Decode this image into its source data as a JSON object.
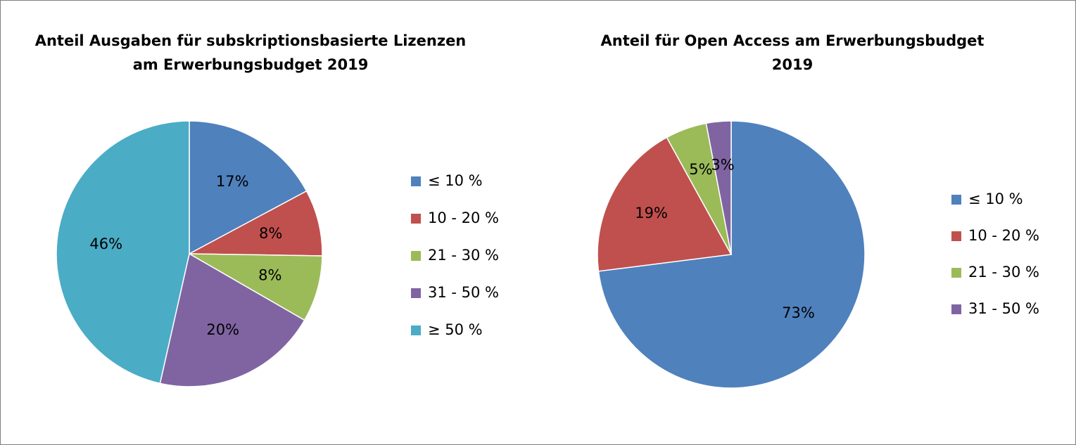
{
  "chart_data": [
    {
      "type": "pie",
      "title_lines": [
        "Anteil Ausgaben für subskriptionsbasierte Lizenzen",
        "am Erwerbungsbudget 2019"
      ],
      "categories": [
        "≤ 10 %",
        "10 - 20 %",
        "21 - 30 %",
        "31 - 50 %",
        "≥ 50 %"
      ],
      "values": [
        17,
        8,
        8,
        20,
        46
      ],
      "labels": [
        "17%",
        "8%",
        "8%",
        "20%",
        "46%"
      ],
      "colors": [
        "#4f81bd",
        "#c0504d",
        "#9bbb59",
        "#8064a2",
        "#4bacc6"
      ],
      "legend_position": "right"
    },
    {
      "type": "pie",
      "title_lines": [
        "Anteil für Open Access am Erwerbungsbudget",
        "2019"
      ],
      "categories": [
        "≤ 10 %",
        "10 - 20 %",
        "21 - 30 %",
        "31 - 50 %"
      ],
      "values": [
        73,
        19,
        5,
        3
      ],
      "labels": [
        "73%",
        "19%",
        "5%",
        "3%"
      ],
      "colors": [
        "#4f81bd",
        "#c0504d",
        "#9bbb59",
        "#8064a2"
      ],
      "legend_position": "right"
    }
  ]
}
